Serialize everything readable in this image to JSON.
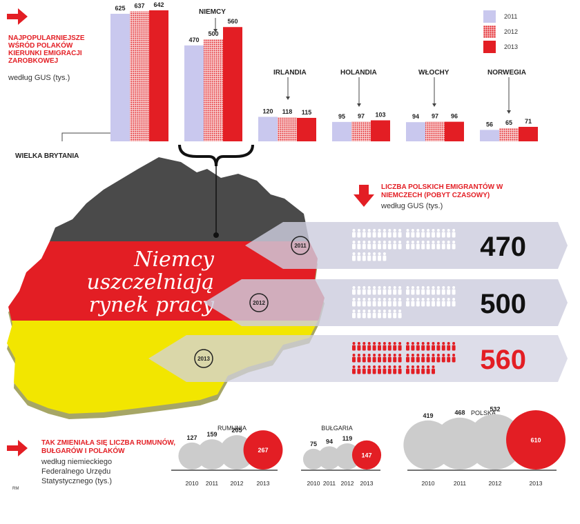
{
  "intro": {
    "title": "NAJPOPULARNIEJSZE WŚRÓD POLAKÓW KIERUNKI EMIGRACJI ZAROBKOWEJ",
    "subtitle": "według GUS (tys.)"
  },
  "legend": [
    "2011",
    "2012",
    "2013"
  ],
  "colors": {
    "y2011": "#c9c8ee",
    "y2012": "#e8454a",
    "y2013": "#e31e24",
    "grey": "#cccccc",
    "darkgrey": "#4a4a4a",
    "gold": "#f2e600"
  },
  "chart_data": [
    {
      "type": "bar",
      "categories": [
        "WIELKA BRYTANIA",
        "NIEMCY",
        "IRLANDIA",
        "HOLANDIA",
        "WŁOCHY",
        "NORWEGIA"
      ],
      "series": [
        {
          "name": "2011",
          "values": [
            625,
            470,
            120,
            95,
            94,
            56
          ]
        },
        {
          "name": "2012",
          "values": [
            637,
            500,
            118,
            97,
            97,
            65
          ]
        },
        {
          "name": "2013",
          "values": [
            642,
            560,
            115,
            103,
            96,
            71
          ]
        }
      ]
    },
    {
      "type": "bar",
      "title": "LICZBA POLSKICH EMIGRANTÓW W NIEMCZECH (POBYT CZASOWY)",
      "subtitle": "według GUS (tys.)",
      "categories": [
        "2011",
        "2012",
        "2013"
      ],
      "values": [
        470,
        500,
        560
      ]
    },
    {
      "type": "scatter",
      "title": "TAK ZMIENIAŁA SIĘ LICZBA RUMUNÓW, BUŁGARÓW I POLAKÓW",
      "subtitle": "według niemieckiego Federalnego Urzędu Statystycznego (tys.)",
      "groups": [
        {
          "name": "RUMUNIA",
          "years": [
            "2010",
            "2011",
            "2012",
            "2013"
          ],
          "values": [
            127,
            159,
            205,
            267
          ]
        },
        {
          "name": "BUŁGARIA",
          "years": [
            "2010",
            "2011",
            "2012",
            "2013"
          ],
          "values": [
            75,
            94,
            119,
            147
          ]
        },
        {
          "name": "POLSKA",
          "years": [
            "2010",
            "2011",
            "2012",
            "2013"
          ],
          "values": [
            419,
            468,
            532,
            610
          ]
        }
      ]
    }
  ],
  "germany": {
    "headline": "Niemcy uszczelniają rynek pracy",
    "title": "LICZBA POLSKICH EMIGRANTÓW W NIEMCZECH (POBYT CZASOWY)",
    "subtitle": "według GUS (tys.)"
  },
  "compare": {
    "title": "TAK ZMIENIAŁA SIĘ LICZBA RUMUNÓW, BUŁGARÓW I POLAKÓW",
    "subtitle": "według niemieckiego Federalnego Urzędu Statystycznego (tys.)"
  },
  "credit": "RM"
}
